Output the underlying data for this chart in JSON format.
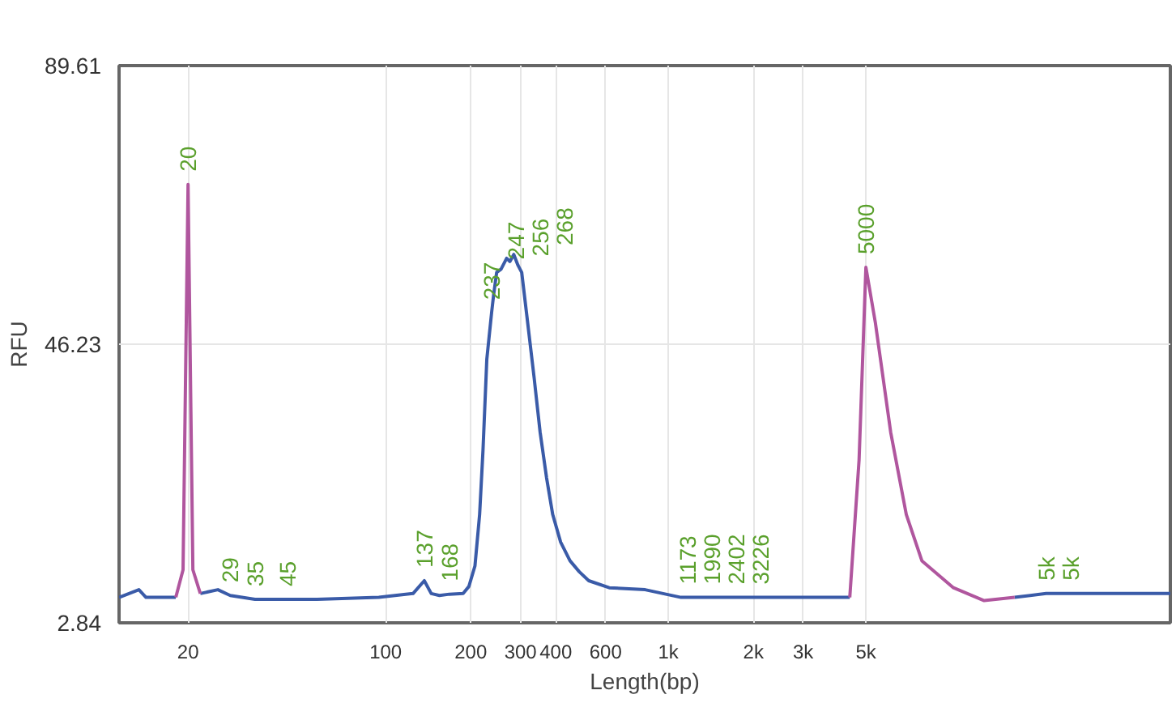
{
  "chart_data": {
    "type": "line",
    "xlabel": "Length(bp)",
    "ylabel": "RFU",
    "log": "x",
    "xlim": [
      11.4,
      59700
    ],
    "ylim": [
      2.84,
      89.61
    ],
    "xticks": [
      20,
      100,
      200,
      300,
      400,
      600,
      {
        "value": 1000,
        "label": "1k"
      },
      {
        "value": 2000,
        "label": "2k"
      },
      {
        "value": 3000,
        "label": "3k"
      },
      {
        "value": 5000,
        "label": "5k"
      }
    ],
    "yticks": [
      2.84,
      46.23,
      89.61
    ],
    "grid": true,
    "line_style": "solid",
    "series": [
      {
        "color": "#3a5ba8",
        "x": [
          11.4,
          13.4,
          14.2,
          18.1,
          20,
          22.1,
          25.5,
          28.2,
          34.5,
          45,
          57.2,
          94.6,
          125,
          137,
          145,
          155,
          168,
          188,
          197,
          207,
          215,
          221,
          228,
          237,
          241,
          247,
          256,
          268,
          275,
          284,
          294,
          303,
          315,
          335,
          352,
          371,
          390,
          416,
          449,
          484,
          523,
          618,
          828,
          1109,
          1173,
          2000,
          4385,
          11240,
          16800,
          21700,
          59700
        ],
        "values": [
          6.8,
          8.0,
          6.8,
          6.8,
          null,
          7.4,
          8.0,
          7.1,
          6.5,
          6.5,
          6.5,
          6.8,
          7.4,
          9.4,
          7.4,
          7.1,
          7.3,
          7.4,
          8.5,
          11.7,
          19.7,
          29.7,
          43.9,
          51.1,
          53.9,
          57.4,
          57.9,
          59.6,
          59.1,
          60.2,
          58.5,
          57.4,
          51.1,
          41.1,
          32.5,
          25.4,
          19.7,
          15.4,
          12.5,
          10.8,
          9.4,
          8.3,
          8.0,
          6.8,
          6.8,
          6.8,
          6.8,
          null,
          6.8,
          7.4,
          7.4
        ]
      },
      {
        "color": "#b0569e",
        "x": [
          18.1,
          19.2,
          20,
          20.8,
          22.1,
          300,
          4385,
          4730,
          5000,
          5400,
          6120,
          6950,
          7890,
          10200,
          13100,
          16800
        ],
        "values": [
          6.8,
          11.1,
          71.1,
          11.1,
          7.4,
          null,
          6.8,
          28.2,
          58.2,
          49.6,
          32.5,
          19.7,
          12.5,
          8.3,
          6.3,
          6.8
        ]
      }
    ],
    "annotations": [
      {
        "text": "20",
        "x": 20,
        "y": 71.1
      },
      {
        "text": "29",
        "x": 28.2,
        "y": 7.1
      },
      {
        "text": "35",
        "x": 34.5,
        "y": 6.5
      },
      {
        "text": "45",
        "x": 45,
        "y": 6.5
      },
      {
        "text": "137",
        "x": 137,
        "y": 9.4
      },
      {
        "text": "168",
        "x": 168,
        "y": 7.3
      },
      {
        "text": "237",
        "x": 237,
        "y": 51.1
      },
      {
        "text": "247",
        "x": 247,
        "y": 57.4
      },
      {
        "text": "256",
        "x": 256,
        "y": 57.9
      },
      {
        "text": "268",
        "x": 268,
        "y": 59.6
      },
      {
        "text": "1173",
        "x": 1173,
        "y": 6.8
      },
      {
        "text": "1990",
        "x": 1173,
        "y": 6.8
      },
      {
        "text": "2402",
        "x": 1173,
        "y": 6.8
      },
      {
        "text": "3226",
        "x": 1173,
        "y": 6.8
      },
      {
        "text": "5000",
        "x": 5000,
        "y": 58.2
      },
      {
        "text": "5k",
        "x": 21700,
        "y": 7.4
      },
      {
        "text": "5k",
        "x": 21700,
        "y": 7.4
      }
    ]
  }
}
